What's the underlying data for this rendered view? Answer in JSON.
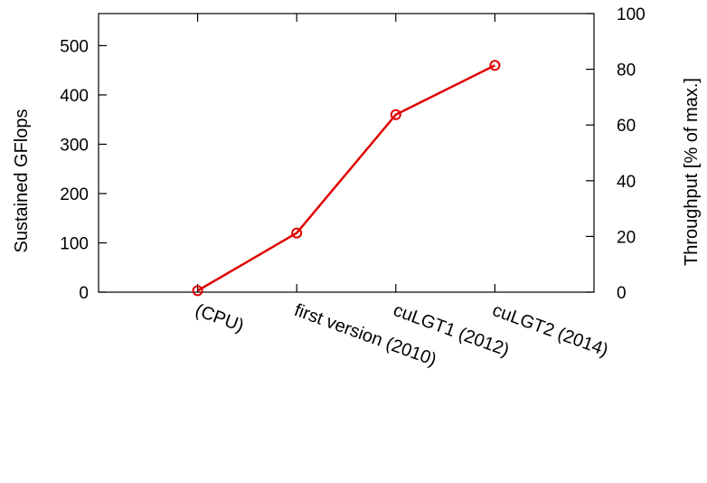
{
  "chart_data": {
    "type": "line",
    "title": "",
    "categories": [
      "(CPU)",
      "first version (2010)",
      "cuLGT1 (2012)",
      "cuLGT2 (2014)"
    ],
    "series": [
      {
        "values": [
          3,
          120,
          360,
          460
        ]
      }
    ],
    "ylabel": "Sustained GFlops",
    "y2label": "Throughput [% of max.]",
    "ylim": [
      0,
      565
    ],
    "y2lim": [
      0,
      100
    ],
    "yticks": [
      "0",
      "100",
      "200",
      "300",
      "400",
      "500"
    ],
    "y2ticks": [
      "0",
      "20",
      "40",
      "60",
      "80",
      "100"
    ],
    "grid": false,
    "legend": "none",
    "colors": {
      "series": "#e00000",
      "axis": "#000000"
    }
  }
}
